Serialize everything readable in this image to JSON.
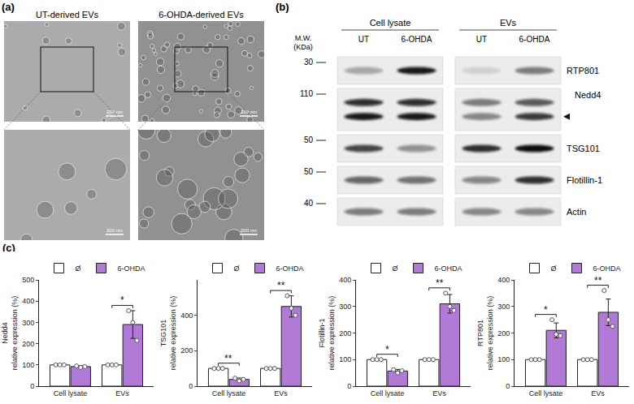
{
  "panels": {
    "a": {
      "label": "(a)",
      "columns": [
        "UT-derived EVs",
        "6-OHDA-derived EVs"
      ],
      "scale_bar": "200 nm"
    },
    "b": {
      "label": "(b)",
      "mw_label": [
        "M.W.",
        "(KDa)"
      ],
      "groups": [
        {
          "label": "Cell lysate",
          "lanes": [
            "UT",
            "6-OHDA"
          ]
        },
        {
          "label": "EVs",
          "lanes": [
            "UT",
            "6-OHDA"
          ]
        }
      ],
      "arrow_row": "Nedd4",
      "rows": [
        {
          "name": "RTP801",
          "mw": 30,
          "bands": [
            [
              0.3,
              0.95,
              0.12,
              0.5
            ]
          ]
        },
        {
          "name": "Nedd4",
          "mw": 110,
          "bands": [
            [
              0.85,
              0.85,
              0.5,
              0.65
            ],
            [
              0.95,
              0.95,
              0.45,
              0.8
            ]
          ]
        },
        {
          "name": "TSG101",
          "mw": 50,
          "bands": [
            [
              0.75,
              0.4,
              0.85,
              1.0
            ]
          ]
        },
        {
          "name": "Flotillin-1",
          "mw": 50,
          "bands": [
            [
              0.6,
              0.55,
              0.45,
              0.85
            ]
          ]
        },
        {
          "name": "Actin",
          "mw": 40,
          "bands": [
            [
              0.5,
              0.5,
              0.45,
              0.45
            ]
          ]
        }
      ]
    },
    "c": {
      "label": "(c)"
    }
  },
  "chart_data": [
    {
      "type": "bar",
      "categories": [
        "Cell lysate",
        "EVs"
      ],
      "ylabel": [
        "Nedd4",
        "relative expression (%)"
      ],
      "ylim": [
        0,
        500
      ],
      "yticks": [
        0,
        100,
        200,
        300,
        400,
        500
      ],
      "grid": false,
      "legend": "top",
      "series": [
        {
          "name": "Ø",
          "color": "#ffffff",
          "values": [
            100,
            100
          ],
          "errors": [
            0,
            0
          ],
          "points": [
            [
              100,
              100,
              100
            ],
            [
              100,
              100,
              100
            ]
          ]
        },
        {
          "name": "6-OHDA",
          "color": "#b07ad6",
          "values": [
            92,
            290
          ],
          "errors": [
            4,
            65
          ],
          "points": [
            [
              95,
              88,
              92
            ],
            [
              355,
              300,
              215
            ]
          ]
        }
      ],
      "significance": [
        {
          "category": "EVs",
          "label": "*"
        }
      ]
    },
    {
      "type": "bar",
      "categories": [
        "Cell lysate",
        "EVs"
      ],
      "ylabel": [
        "TSG101",
        "relative expression (%)"
      ],
      "ylim": [
        0,
        600
      ],
      "yticks": [
        0,
        200,
        400
      ],
      "grid": false,
      "legend": "top",
      "series": [
        {
          "name": "Ø",
          "color": "#ffffff",
          "values": [
            100,
            100
          ],
          "errors": [
            0,
            0
          ],
          "points": [
            [
              100,
              100,
              100
            ],
            [
              100,
              100,
              100
            ]
          ]
        },
        {
          "name": "6-OHDA",
          "color": "#b07ad6",
          "values": [
            38,
            450
          ],
          "errors": [
            8,
            60
          ],
          "points": [
            [
              45,
              30,
              38
            ],
            [
              510,
              440,
              400
            ]
          ]
        }
      ],
      "significance": [
        {
          "category": "Cell lysate",
          "label": "**"
        },
        {
          "category": "EVs",
          "label": "**"
        }
      ]
    },
    {
      "type": "bar",
      "categories": [
        "Cell lysate",
        "EVs"
      ],
      "ylabel": [
        "Flotillin-1",
        "relative expression (%)"
      ],
      "ylim": [
        0,
        400
      ],
      "yticks": [
        0,
        100,
        200,
        300,
        400
      ],
      "grid": false,
      "legend": "top",
      "series": [
        {
          "name": "Ø",
          "color": "#ffffff",
          "values": [
            100,
            100
          ],
          "errors": [
            0,
            0
          ],
          "points": [
            [
              100,
              100,
              100
            ],
            [
              100,
              100,
              100
            ]
          ]
        },
        {
          "name": "6-OHDA",
          "color": "#b07ad6",
          "values": [
            57,
            310
          ],
          "errors": [
            6,
            35
          ],
          "points": [
            [
              62,
              50,
              58
            ],
            [
              350,
              300,
              285
            ]
          ]
        }
      ],
      "significance": [
        {
          "category": "Cell lysate",
          "label": "*"
        },
        {
          "category": "EVs",
          "label": "**"
        }
      ]
    },
    {
      "type": "bar",
      "categories": [
        "Cell lysate",
        "EVs"
      ],
      "ylabel": [
        "RTP801",
        "relative expression (%)"
      ],
      "ylim": [
        0,
        400
      ],
      "yticks": [
        0,
        100,
        200,
        300,
        400
      ],
      "grid": false,
      "legend": "top",
      "series": [
        {
          "name": "Ø",
          "color": "#ffffff",
          "values": [
            100,
            100
          ],
          "errors": [
            0,
            0
          ],
          "points": [
            [
              100,
              100,
              100
            ],
            [
              100,
              100,
              100
            ]
          ]
        },
        {
          "name": "6-OHDA",
          "color": "#b07ad6",
          "values": [
            210,
            278
          ],
          "errors": [
            28,
            50
          ],
          "points": [
            [
              250,
              195,
              190
            ],
            [
              360,
              250,
              225
            ]
          ]
        }
      ],
      "significance": [
        {
          "category": "Cell lysate",
          "label": "*"
        },
        {
          "category": "EVs",
          "label": "**"
        }
      ]
    }
  ]
}
